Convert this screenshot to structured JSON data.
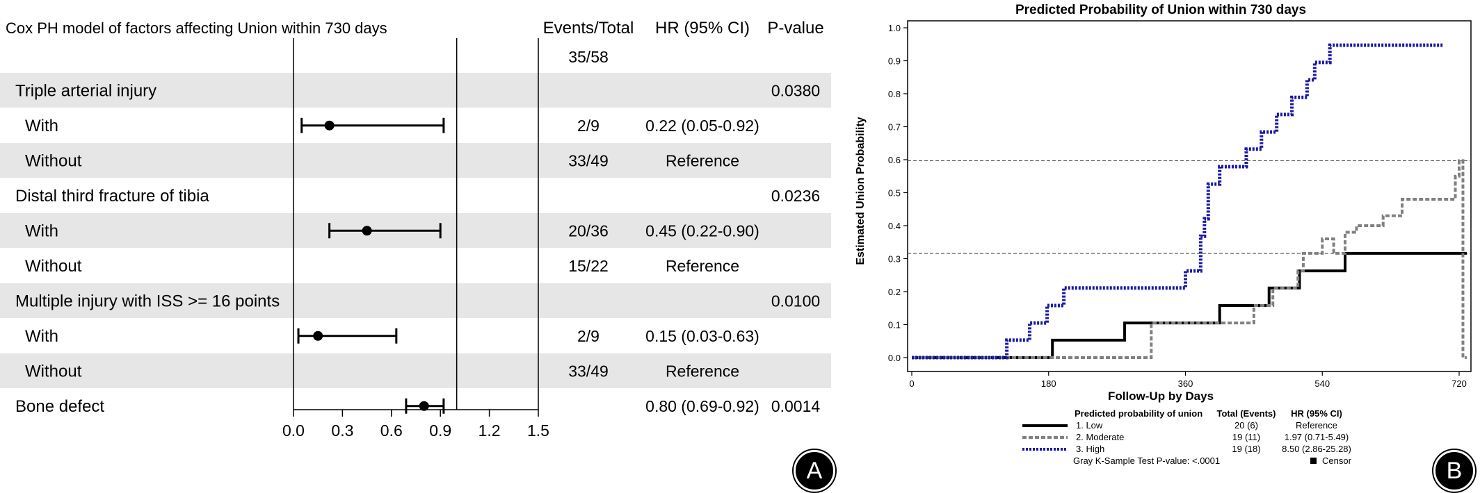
{
  "chart_data": [
    {
      "type": "forest",
      "title": "Cox PH model of factors affecting Union within 730 days",
      "column_headers": {
        "events": "Events/Total",
        "hr": "HR (95% CI)",
        "p": "P-value"
      },
      "overall_events": "35/58",
      "x_ticks": [
        "0.0",
        "0.3",
        "0.6",
        "0.9",
        "1.2",
        "1.5"
      ],
      "xlim": [
        0,
        1.5
      ],
      "reference_line": 1.0,
      "rows": [
        {
          "label": "Triple arterial injury",
          "level": 0,
          "events": "",
          "hr_text": "",
          "p": "0.0380",
          "shaded": true
        },
        {
          "label": "With",
          "level": 1,
          "events": "2/9",
          "hr_text": "0.22 (0.05-0.92)",
          "p": "",
          "hr": 0.22,
          "lo": 0.05,
          "hi": 0.92,
          "shaded": false
        },
        {
          "label": "Without",
          "level": 1,
          "events": "33/49",
          "hr_text": "Reference",
          "p": "",
          "shaded": true
        },
        {
          "label": "Distal third fracture of tibia",
          "level": 0,
          "events": "",
          "hr_text": "",
          "p": "0.0236",
          "shaded": false
        },
        {
          "label": "With",
          "level": 1,
          "events": "20/36",
          "hr_text": "0.45 (0.22-0.90)",
          "p": "",
          "hr": 0.45,
          "lo": 0.22,
          "hi": 0.9,
          "shaded": true
        },
        {
          "label": "Without",
          "level": 1,
          "events": "15/22",
          "hr_text": "Reference",
          "p": "",
          "shaded": false
        },
        {
          "label": "Multiple injury with ISS >= 16 points",
          "level": 0,
          "events": "",
          "hr_text": "",
          "p": "0.0100",
          "shaded": true
        },
        {
          "label": "With",
          "level": 1,
          "events": "2/9",
          "hr_text": "0.15 (0.03-0.63)",
          "p": "",
          "hr": 0.15,
          "lo": 0.03,
          "hi": 0.63,
          "shaded": false
        },
        {
          "label": "Without",
          "level": 1,
          "events": "33/49",
          "hr_text": "Reference",
          "p": "",
          "shaded": true
        },
        {
          "label": "Bone defect",
          "level": 0,
          "events": "",
          "hr_text": "0.80 (0.69-0.92)",
          "p": "0.0014",
          "hr": 0.8,
          "lo": 0.69,
          "hi": 0.92,
          "shaded": false
        }
      ],
      "panel_label": "A"
    },
    {
      "type": "line",
      "title": "Predicted Probability of Union within 730 days",
      "xlabel": "Follow-Up by Days",
      "ylabel": "Estimated Union Probability",
      "xlim": [
        0,
        730
      ],
      "ylim": [
        0,
        1.0
      ],
      "x_ticks": [
        0,
        180,
        360,
        540,
        720
      ],
      "y_ticks": [
        "0.0",
        "0.1",
        "0.2",
        "0.3",
        "0.4",
        "0.5",
        "0.6",
        "0.7",
        "0.8",
        "0.9",
        "1.0"
      ],
      "reference_hlines": [
        0.316,
        0.597
      ],
      "series": [
        {
          "name": "1. Low",
          "color": "#000000",
          "style": "solid",
          "x": [
            0,
            185,
            280,
            405,
            470,
            510,
            570,
            730
          ],
          "y": [
            0,
            0.053,
            0.105,
            0.158,
            0.211,
            0.263,
            0.316,
            0.316
          ]
        },
        {
          "name": "2. Moderate",
          "color": "#808080",
          "style": "dashed",
          "x": [
            0,
            315,
            450,
            475,
            508,
            515,
            540,
            555,
            570,
            585,
            620,
            645,
            715,
            720,
            725,
            730
          ],
          "y": [
            0,
            0.105,
            0.158,
            0.211,
            0.263,
            0.316,
            0.36,
            0.316,
            0.38,
            0.4,
            0.43,
            0.48,
            0.55,
            0.597,
            0.0,
            0.0
          ]
        },
        {
          "name": "3. High",
          "color": "#1a1aa8",
          "style": "dotted",
          "x": [
            0,
            125,
            135,
            155,
            165,
            178,
            185,
            200,
            215,
            240,
            295,
            335,
            360,
            365,
            380,
            385,
            390,
            405,
            440,
            460,
            475,
            480,
            500,
            520,
            530,
            550,
            580,
            700
          ],
          "y": [
            0,
            0.053,
            0.053,
            0.105,
            0.105,
            0.158,
            0.158,
            0.211,
            0.211,
            0.211,
            0.211,
            0.211,
            0.263,
            0.263,
            0.368,
            0.421,
            0.526,
            0.579,
            0.632,
            0.684,
            0.684,
            0.737,
            0.789,
            0.842,
            0.895,
            0.947,
            0.947,
            0.947
          ]
        }
      ],
      "legend": {
        "placement": "bottom",
        "header": {
          "name": "Predicted probability of union",
          "total": "Total (Events)",
          "hr": "HR (95% CI)"
        },
        "rows": [
          {
            "name": "1. Low",
            "total": "20 (6)",
            "hr": "Reference"
          },
          {
            "name": "2. Moderate",
            "total": "19 (11)",
            "hr": "1.97 (0.71-5.49)"
          },
          {
            "name": "3. High",
            "total": "19 (18)",
            "hr": "8.50 (2.86-25.28)"
          }
        ],
        "footnote": "Gray K-Sample Test P-value: <.0001",
        "censor_label": "Censor"
      },
      "panel_label": "B"
    }
  ]
}
